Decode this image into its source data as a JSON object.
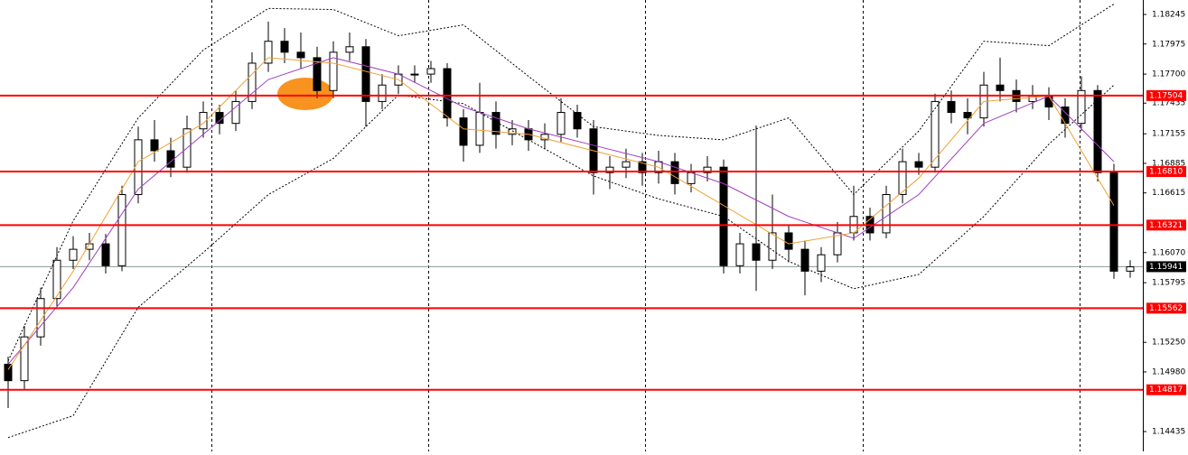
{
  "chart_data": {
    "type": "candlestick",
    "ylim": [
      1.14254,
      1.18377
    ],
    "yticks": [
      1.18245,
      1.17975,
      {
        "value": 1.177,
        "label": "1.17700"
      },
      1.17435,
      1.17155,
      1.16885,
      1.16615,
      {
        "value": 1.1607,
        "label": "1.16070"
      },
      1.15795,
      {
        "value": 1.1525,
        "label": "1.15250"
      },
      {
        "value": 1.1498,
        "label": "1.14980"
      },
      1.14435
    ],
    "levels": [
      1.17504,
      {
        "value": 1.1681,
        "label": "1.16810"
      },
      1.16321,
      1.15562,
      1.14817
    ],
    "level_color": "#ff0000",
    "current_price": 1.15941,
    "open": [
      1.1505,
      1.149,
      1.153,
      1.1565,
      1.16,
      1.161,
      1.1615,
      1.1595,
      1.166,
      1.171,
      1.17,
      1.1685,
      1.172,
      1.1735,
      1.1725,
      1.1745,
      1.178,
      1.18,
      1.179,
      1.1785,
      1.1755,
      1.179,
      1.1795,
      1.1745,
      1.176,
      1.177,
      1.177,
      1.1775,
      1.173,
      1.1705,
      1.1735,
      1.1715,
      1.172,
      1.171,
      1.1715,
      1.1735,
      1.172,
      1.168,
      1.1685,
      1.169,
      1.168,
      1.169,
      1.167,
      1.168,
      1.1685,
      1.1595,
      1.1615,
      1.16,
      1.1625,
      1.161,
      1.159,
      1.1605,
      1.1625,
      1.164,
      1.1625,
      1.166,
      1.169,
      1.1685,
      1.1745,
      1.1735,
      1.173,
      1.176,
      1.1755,
      1.1745,
      1.175,
      1.174,
      1.1725,
      1.1755,
      1.168,
      1.159
    ],
    "high": [
      1.1512,
      1.154,
      1.1575,
      1.1612,
      1.1622,
      1.1625,
      1.1624,
      1.1668,
      1.1722,
      1.1728,
      1.1712,
      1.1732,
      1.1745,
      1.1742,
      1.1755,
      1.179,
      1.1818,
      1.1812,
      1.1808,
      1.1795,
      1.18,
      1.1808,
      1.1802,
      1.177,
      1.1778,
      1.1778,
      1.1782,
      1.178,
      1.1738,
      1.1762,
      1.1745,
      1.1728,
      1.1728,
      1.1725,
      1.1748,
      1.1742,
      1.1728,
      1.1695,
      1.1702,
      1.1698,
      1.17,
      1.1698,
      1.1688,
      1.1695,
      1.1692,
      1.1625,
      1.1723,
      1.166,
      1.1632,
      1.1618,
      1.1612,
      1.1635,
      1.1668,
      1.1648,
      1.1668,
      1.1702,
      1.1698,
      1.1752,
      1.1755,
      1.1748,
      1.1772,
      1.1785,
      1.1765,
      1.176,
      1.1758,
      1.1748,
      1.1768,
      1.176,
      1.1688,
      1.16
    ],
    "low": [
      1.1465,
      1.1482,
      1.1522,
      1.1558,
      1.1592,
      1.16,
      1.1588,
      1.159,
      1.1652,
      1.169,
      1.1676,
      1.168,
      1.1712,
      1.1715,
      1.1718,
      1.1738,
      1.1772,
      1.178,
      1.1775,
      1.1748,
      1.1748,
      1.1782,
      1.1722,
      1.1738,
      1.1752,
      1.1762,
      1.1762,
      1.1722,
      1.169,
      1.1698,
      1.1702,
      1.1705,
      1.17,
      1.1702,
      1.1708,
      1.1712,
      1.166,
      1.1665,
      1.1675,
      1.1668,
      1.167,
      1.166,
      1.1662,
      1.1672,
      1.1588,
      1.1588,
      1.1572,
      1.1592,
      1.1598,
      1.1568,
      1.158,
      1.1598,
      1.1618,
      1.1618,
      1.162,
      1.1652,
      1.1678,
      1.168,
      1.1725,
      1.1715,
      1.1722,
      1.1745,
      1.1735,
      1.1738,
      1.1728,
      1.1712,
      1.1718,
      1.1672,
      1.1583,
      1.1584
    ],
    "close": [
      1.149,
      1.153,
      1.1565,
      1.16,
      1.161,
      1.1615,
      1.1595,
      1.166,
      1.171,
      1.17,
      1.1685,
      1.172,
      1.1735,
      1.1725,
      1.1745,
      1.178,
      1.18,
      1.179,
      1.1785,
      1.1755,
      1.179,
      1.1795,
      1.1745,
      1.176,
      1.177,
      1.177,
      1.1775,
      1.173,
      1.1705,
      1.1735,
      1.1715,
      1.172,
      1.171,
      1.1715,
      1.1735,
      1.172,
      1.168,
      1.1685,
      1.169,
      1.168,
      1.169,
      1.167,
      1.168,
      1.1685,
      1.1595,
      1.1615,
      1.16,
      1.1625,
      1.161,
      1.159,
      1.1605,
      1.1625,
      1.164,
      1.1625,
      1.166,
      1.169,
      1.1685,
      1.1745,
      1.1735,
      1.173,
      1.176,
      1.1755,
      1.1745,
      1.175,
      1.174,
      1.1725,
      1.1755,
      1.168,
      1.159,
      1.1594
    ],
    "lines": [
      {
        "color": "#000000",
        "dashed": true,
        "x": [
          0,
          4,
          8,
          12,
          16,
          20,
          24,
          28,
          32,
          36,
          40,
          44,
          48,
          52,
          56,
          60,
          64,
          68
        ],
        "values": [
          1.1508,
          1.1636,
          1.173,
          1.1792,
          1.183,
          1.1829,
          1.1805,
          1.1815,
          1.1768,
          1.1722,
          1.1714,
          1.171,
          1.173,
          1.166,
          1.1718,
          1.18,
          1.1796,
          1.1834
        ]
      },
      {
        "color": "#000000",
        "dashed": true,
        "x": [
          0,
          4,
          8,
          12,
          16,
          20,
          24,
          28,
          32,
          36,
          40,
          44,
          48,
          52,
          56,
          60,
          64,
          68
        ],
        "values": [
          1.1438,
          1.1458,
          1.1557,
          1.1607,
          1.166,
          1.1693,
          1.1751,
          1.1743,
          1.171,
          1.1677,
          1.1656,
          1.164,
          1.1599,
          1.1574,
          1.1587,
          1.164,
          1.1706,
          1.176
        ]
      },
      {
        "color": "#a040c0",
        "dashed": false,
        "x": [
          0,
          4,
          8,
          12,
          16,
          20,
          24,
          28,
          32,
          36,
          40,
          44,
          48,
          52,
          56,
          60,
          64,
          68
        ],
        "values": [
          1.1505,
          1.1575,
          1.1665,
          1.1715,
          1.1765,
          1.1785,
          1.177,
          1.174,
          1.172,
          1.1705,
          1.169,
          1.167,
          1.164,
          1.162,
          1.166,
          1.1725,
          1.175,
          1.169
        ]
      },
      {
        "color": "#f0a030",
        "dashed": false,
        "x": [
          0,
          4,
          8,
          12,
          16,
          20,
          24,
          28,
          32,
          36,
          40,
          44,
          48,
          52,
          56,
          60,
          64,
          68
        ],
        "values": [
          1.15,
          1.159,
          1.169,
          1.1725,
          1.1785,
          1.178,
          1.1765,
          1.172,
          1.1715,
          1.17,
          1.1685,
          1.165,
          1.1615,
          1.1625,
          1.1675,
          1.1745,
          1.175,
          1.165
        ]
      }
    ]
  }
}
